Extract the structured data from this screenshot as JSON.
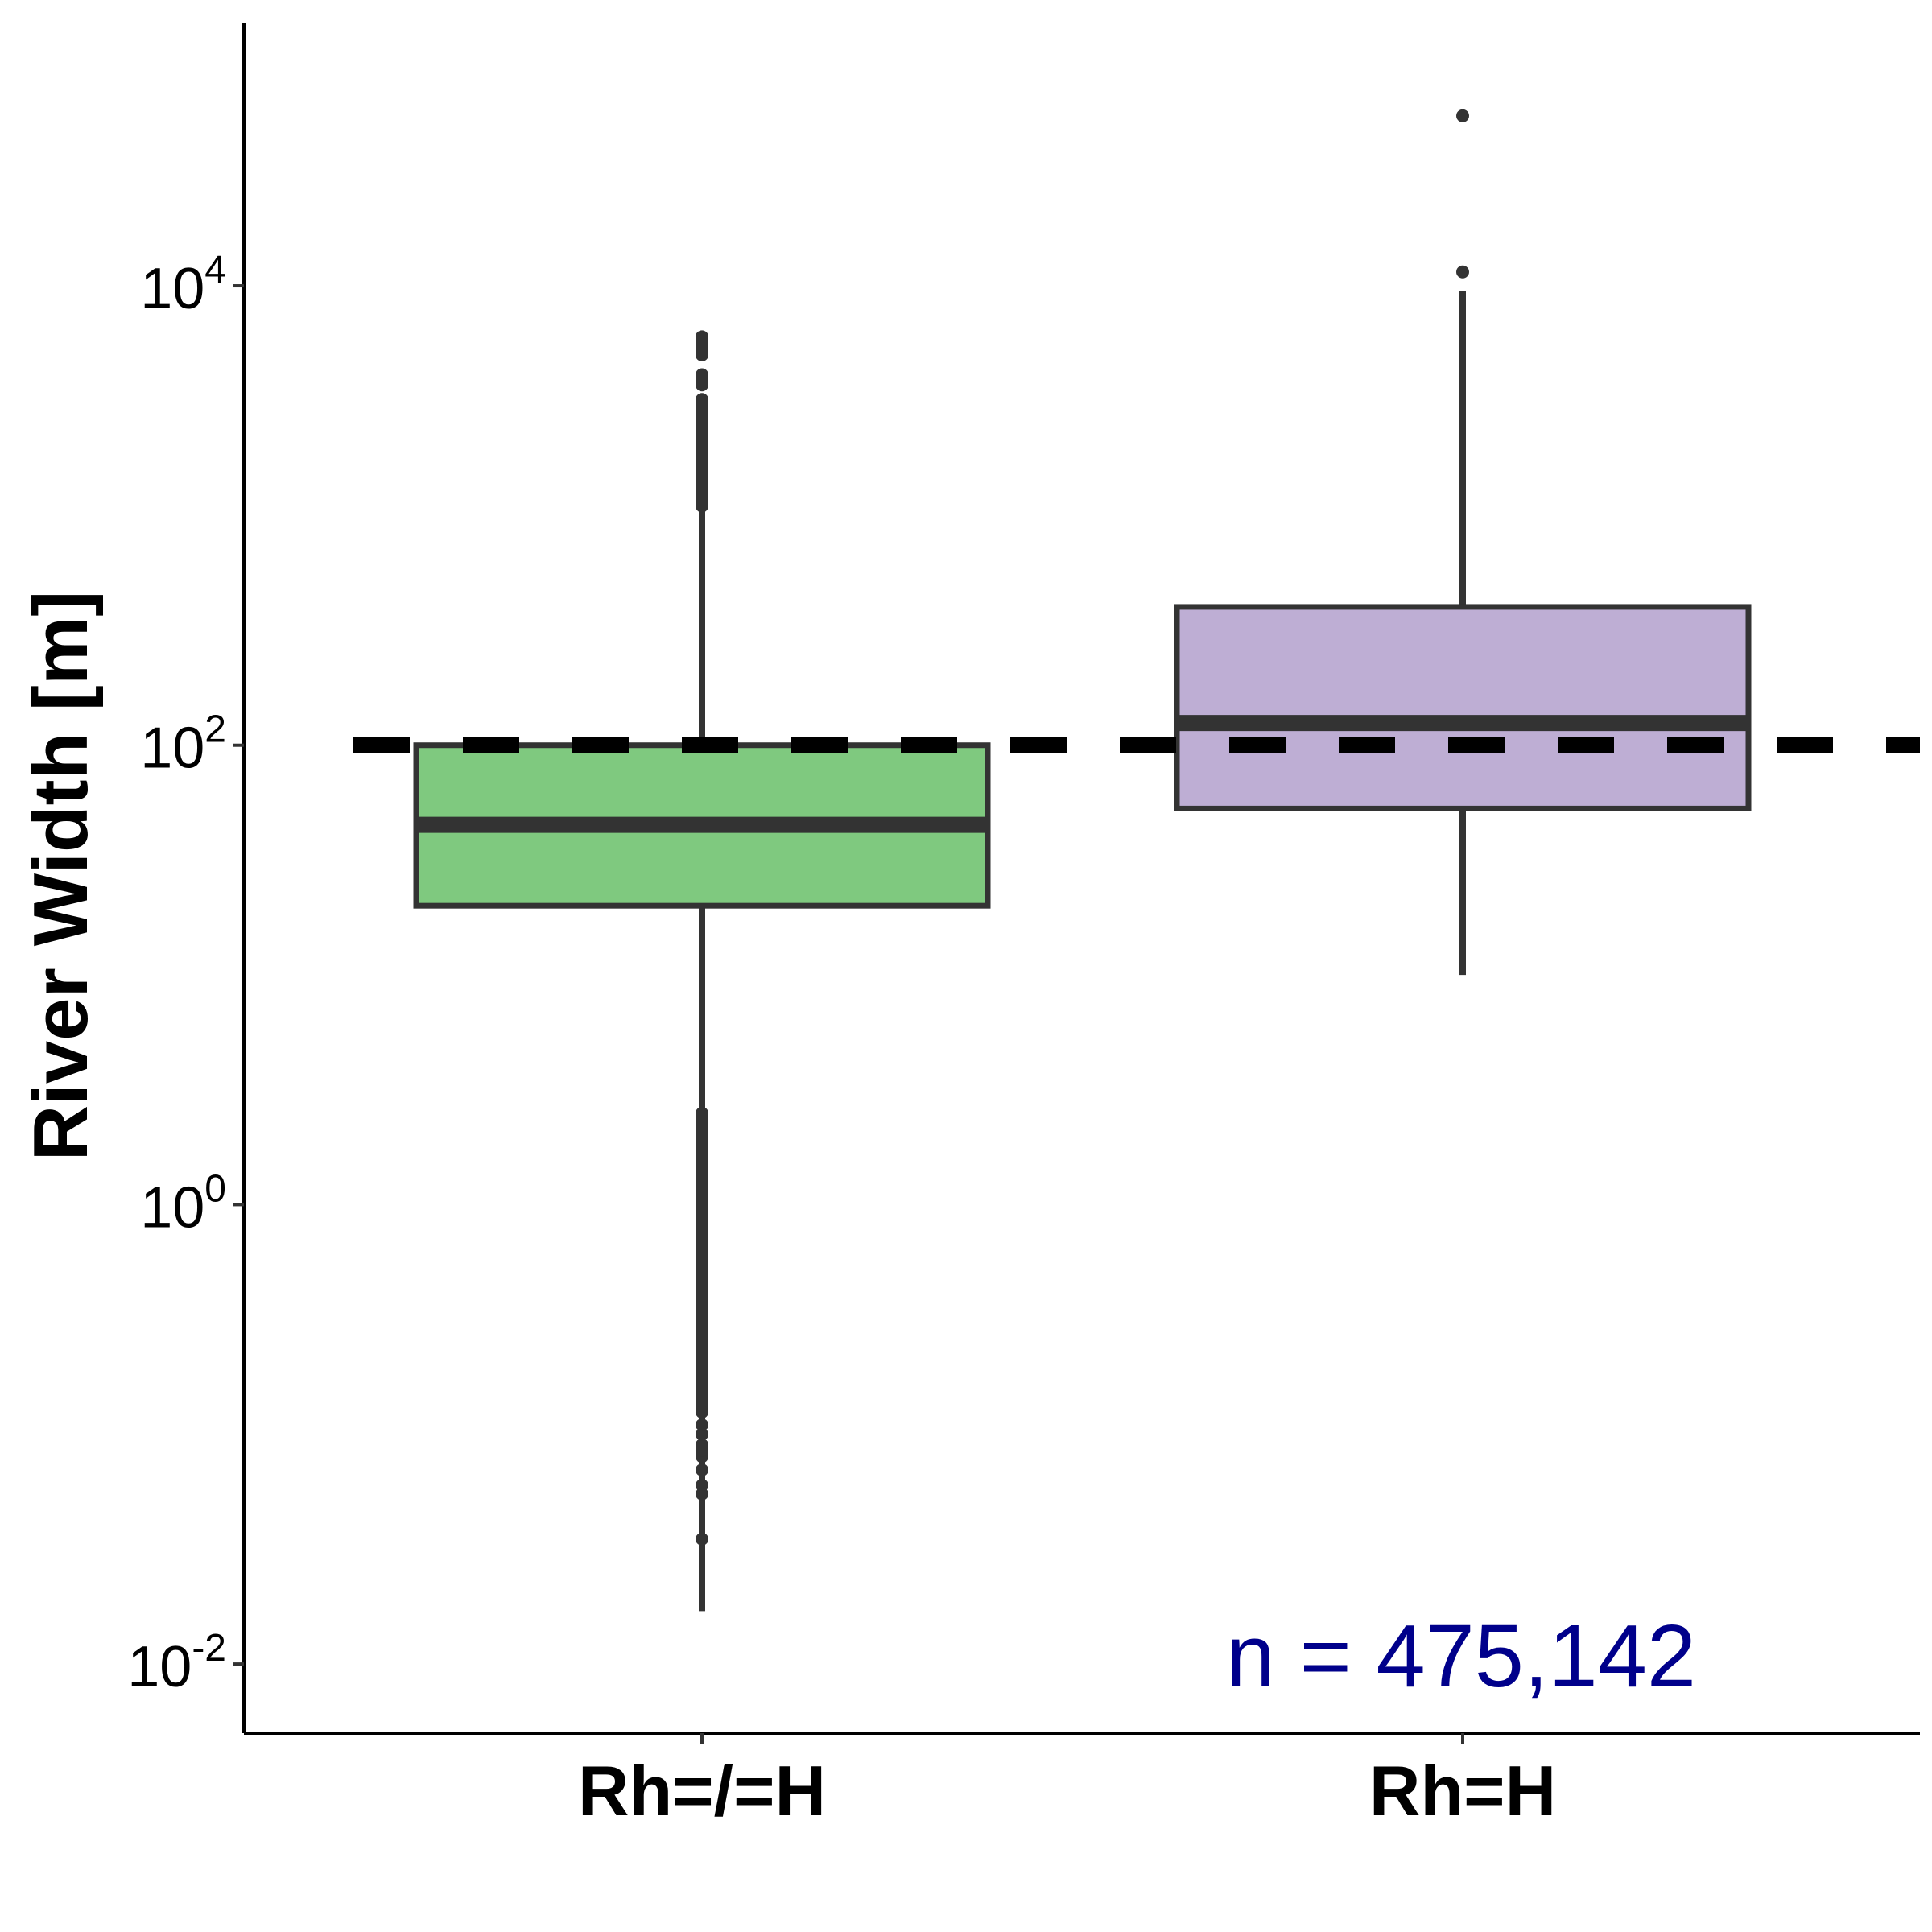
{
  "chart_data": {
    "type": "boxplot",
    "title": "",
    "xlabel": "",
    "ylabel": "River Width [m]",
    "y_scale": "log10",
    "ylim": [
      0.005,
      140000
    ],
    "y_ticks": [
      {
        "value": 0.01,
        "base": "10",
        "exp": "-2"
      },
      {
        "value": 1,
        "base": "10",
        "exp": "0"
      },
      {
        "value": 100,
        "base": "10",
        "exp": "2"
      },
      {
        "value": 10000,
        "base": "10",
        "exp": "4"
      }
    ],
    "categories": [
      "Rh=/=H",
      "Rh=H"
    ],
    "boxes": [
      {
        "category": "Rh=/=H",
        "q1": 20,
        "median": 45,
        "q3": 100,
        "whisker_low": 0.017,
        "whisker_high": 1100,
        "fill": "#7FC97F",
        "outlier_runs": [
          [
            1100,
            3200
          ],
          [
            3700,
            4100
          ],
          [
            5000,
            6000
          ],
          [
            0.13,
            2.5
          ]
        ],
        "outliers": [
          0.035,
          0.055,
          0.06,
          0.07,
          0.08,
          0.085,
          0.09,
          0.1,
          0.11,
          0.125
        ]
      },
      {
        "category": "Rh=H",
        "q1": 53,
        "median": 125,
        "q3": 400,
        "whisker_low": 10,
        "whisker_high": 9500,
        "fill": "#BEAED4",
        "outlier_runs": [],
        "outliers": [
          11500,
          55000
        ]
      }
    ],
    "reference_line": {
      "value": 100,
      "style": "dashed",
      "color": "#000000"
    },
    "annotation": {
      "text": "n = 475,142",
      "color": "#00008B",
      "position": "bottom-right"
    },
    "grid": false,
    "legend": "none"
  }
}
